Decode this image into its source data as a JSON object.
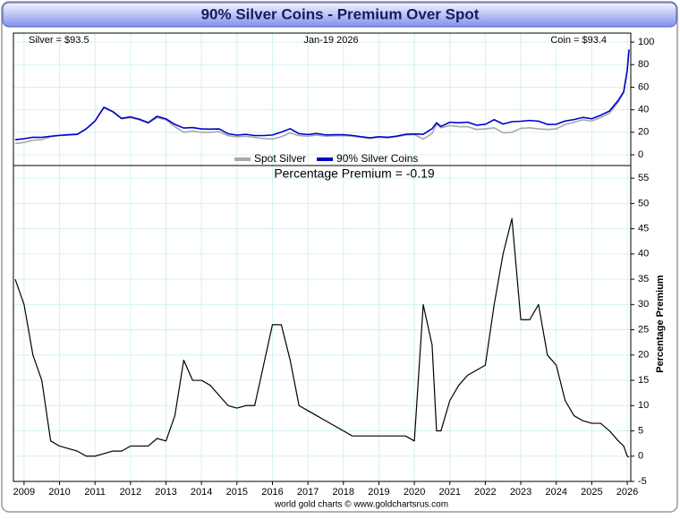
{
  "chart_data": [
    {
      "type": "line",
      "title": "90% Silver Coins - Premium Over Spot",
      "annotations": [
        "Silver = $93.5",
        "Jan-19  2026",
        "Coin = $93.4"
      ],
      "x": [
        2008.75,
        2009,
        2009.25,
        2009.5,
        2009.75,
        2010,
        2010.25,
        2010.5,
        2010.75,
        2011,
        2011.25,
        2011.5,
        2011.75,
        2012,
        2012.25,
        2012.5,
        2012.75,
        2013,
        2013.25,
        2013.5,
        2013.75,
        2014,
        2014.25,
        2014.5,
        2014.75,
        2015,
        2015.25,
        2015.5,
        2015.75,
        2016,
        2016.25,
        2016.5,
        2016.75,
        2017,
        2017.25,
        2017.5,
        2017.75,
        2018,
        2018.25,
        2018.5,
        2018.75,
        2019,
        2019.25,
        2019.5,
        2019.75,
        2020,
        2020.25,
        2020.5,
        2020.625,
        2020.75,
        2021,
        2021.25,
        2021.5,
        2021.75,
        2022,
        2022.25,
        2022.5,
        2022.75,
        2023,
        2023.25,
        2023.5,
        2023.75,
        2024,
        2024.25,
        2024.5,
        2024.75,
        2025,
        2025.25,
        2025.5,
        2025.75,
        2025.9,
        2026,
        2026.05
      ],
      "series": [
        {
          "name": "Spot Silver",
          "color": "#a8a8a8",
          "values": [
            10,
            11,
            13,
            13.5,
            16,
            17,
            17.5,
            18,
            23,
            30,
            42,
            38,
            32,
            33,
            31,
            28,
            33,
            31,
            25,
            20,
            21,
            20,
            20,
            20.5,
            17,
            16,
            16.5,
            15.5,
            14.5,
            14,
            16,
            19.5,
            17,
            16.5,
            17.5,
            16.5,
            16.8,
            17,
            16.5,
            15.5,
            14.5,
            15.5,
            15,
            16,
            17.5,
            18,
            14,
            19,
            27,
            24,
            26,
            25,
            25,
            22.5,
            23,
            24,
            19.5,
            20,
            23.5,
            24,
            23,
            22.5,
            23,
            27,
            29,
            31,
            30,
            33,
            37,
            47,
            55,
            75,
            93.5
          ]
        },
        {
          "name": "90% Silver Coins",
          "color": "#0000cc",
          "values": [
            13.5,
            14.3,
            15.6,
            15.5,
            16.5,
            17.3,
            17.8,
            18.2,
            23,
            30,
            42.2,
            38.4,
            32.3,
            33.7,
            31.6,
            28.6,
            34.2,
            31.9,
            27,
            23.8,
            24.2,
            23,
            22.8,
            23,
            18.7,
            17.5,
            18.2,
            17.1,
            17.1,
            17.6,
            20.2,
            23.2,
            18.7,
            18,
            18.9,
            17.7,
            17.8,
            17.9,
            17.2,
            16.1,
            15.1,
            16.1,
            15.6,
            16.6,
            18.2,
            18.5,
            18.2,
            23.2,
            28.4,
            25.2,
            28.9,
            28.5,
            29,
            26.3,
            27.1,
            31.2,
            27.3,
            29.4,
            29.8,
            30.5,
            29.9,
            27,
            27.1,
            30,
            31.3,
            33.2,
            32,
            35.1,
            38.9,
            48.4,
            56.1,
            75,
            93.4
          ]
        }
      ],
      "xlim": [
        2008.7,
        2026.1
      ],
      "ylim": [
        -9.5,
        108
      ],
      "yticks": [
        0,
        20,
        40,
        60,
        80,
        100
      ],
      "grid": true
    },
    {
      "type": "line",
      "title": "Percentage Premium = -0.19",
      "y_label": "Percentage Premium",
      "source": "world gold charts © www.goldchartsrus.com",
      "x": [
        2008.75,
        2009,
        2009.25,
        2009.5,
        2009.75,
        2010,
        2010.25,
        2010.5,
        2010.75,
        2011,
        2011.25,
        2011.5,
        2011.75,
        2012,
        2012.25,
        2012.5,
        2012.75,
        2013,
        2013.25,
        2013.5,
        2013.75,
        2014,
        2014.25,
        2014.5,
        2014.75,
        2015,
        2015.25,
        2015.5,
        2015.75,
        2016,
        2016.25,
        2016.5,
        2016.75,
        2017,
        2017.25,
        2017.5,
        2017.75,
        2018,
        2018.25,
        2018.5,
        2018.75,
        2019,
        2019.25,
        2019.5,
        2019.75,
        2020,
        2020.25,
        2020.5,
        2020.625,
        2020.75,
        2021,
        2021.25,
        2021.5,
        2021.75,
        2022,
        2022.25,
        2022.5,
        2022.75,
        2023,
        2023.25,
        2023.5,
        2023.75,
        2024,
        2024.25,
        2024.5,
        2024.75,
        2025,
        2025.25,
        2025.5,
        2025.75,
        2025.9,
        2026,
        2026.05
      ],
      "series": [
        {
          "name": "Percentage Premium",
          "color": "#000000",
          "values": [
            35,
            30,
            20,
            15,
            3,
            2,
            1.5,
            1,
            0,
            0,
            0.5,
            1,
            1,
            2,
            2,
            2,
            3.5,
            3,
            8,
            19,
            15,
            15,
            14,
            12,
            10,
            9.5,
            10,
            10,
            18,
            26,
            26,
            19,
            10,
            9,
            8,
            7,
            6,
            5,
            4,
            4,
            4,
            4,
            4,
            4,
            4,
            3,
            30,
            22,
            5,
            5,
            11,
            14,
            16,
            17,
            18,
            30,
            40,
            47,
            27,
            27,
            30,
            20,
            18,
            11,
            8,
            7,
            6.5,
            6.5,
            5,
            3,
            2,
            0,
            -0.19
          ]
        }
      ],
      "xlim": [
        2008.7,
        2026.1
      ],
      "xticks": [
        2009,
        2010,
        2011,
        2012,
        2013,
        2014,
        2015,
        2016,
        2017,
        2018,
        2019,
        2020,
        2021,
        2022,
        2023,
        2024,
        2025,
        2026
      ],
      "ylim": [
        -5,
        57.5
      ],
      "yticks": [
        -5,
        0,
        5,
        10,
        15,
        20,
        25,
        30,
        35,
        40,
        45,
        50,
        55
      ],
      "grid": true
    }
  ]
}
